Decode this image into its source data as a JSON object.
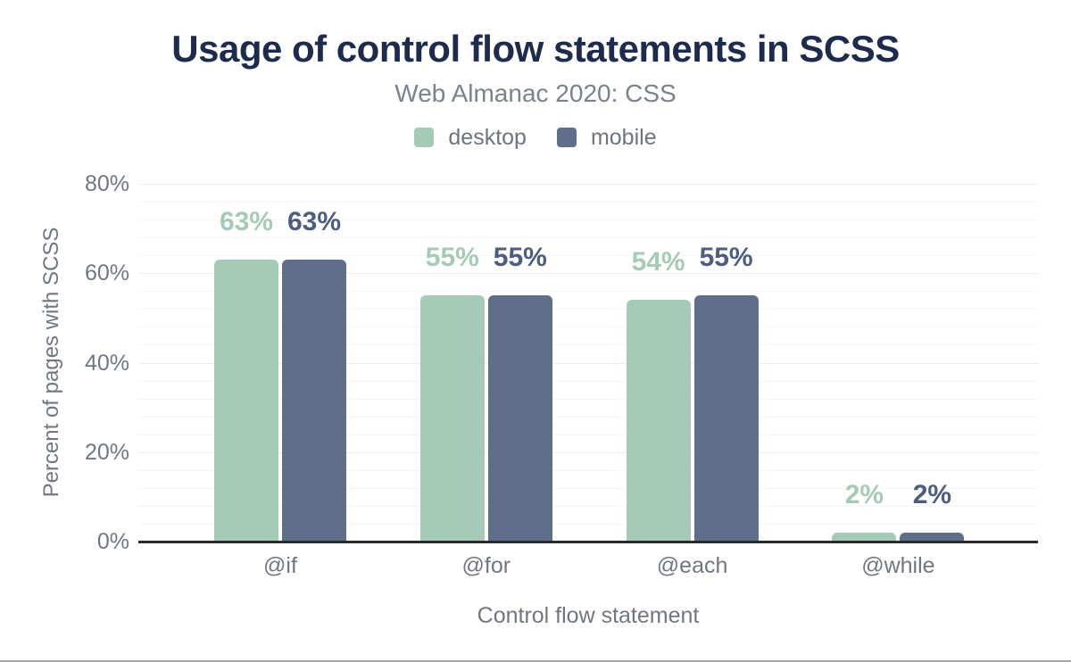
{
  "chart_data": {
    "type": "bar",
    "title": "Usage of control flow statements in SCSS",
    "subtitle": "Web Almanac 2020: CSS",
    "xlabel": "Control flow statement",
    "ylabel": "Percent of pages with SCSS",
    "categories": [
      "@if",
      "@for",
      "@each",
      "@while"
    ],
    "series": [
      {
        "name": "desktop",
        "values": [
          63,
          55,
          54,
          2
        ],
        "labels": [
          "63%",
          "55%",
          "54%",
          "2%"
        ],
        "color": "#a5cbb8",
        "label_color": "#a5cbb8"
      },
      {
        "name": "mobile",
        "values": [
          63,
          55,
          55,
          2
        ],
        "labels": [
          "63%",
          "55%",
          "55%",
          "2%"
        ],
        "color": "#5f6e8a",
        "label_color": "#4d5d80"
      }
    ],
    "ylim": [
      0,
      80
    ],
    "yticks": [
      "0%",
      "20%",
      "40%",
      "60%",
      "80%"
    ],
    "ytick_interval_pct": 20,
    "minor_grid_interval_pct": 4,
    "grid": "horizontal major + minor, light gray",
    "legend_position": "top center"
  },
  "colors": {
    "title": "#1d2c4e",
    "muted_text": "#71767f",
    "grid_major": "#ebedef",
    "grid_minor": "#f4f5f6",
    "axis_line": "#2a2b2f",
    "page_bottom_border": "#a6a6a6"
  }
}
